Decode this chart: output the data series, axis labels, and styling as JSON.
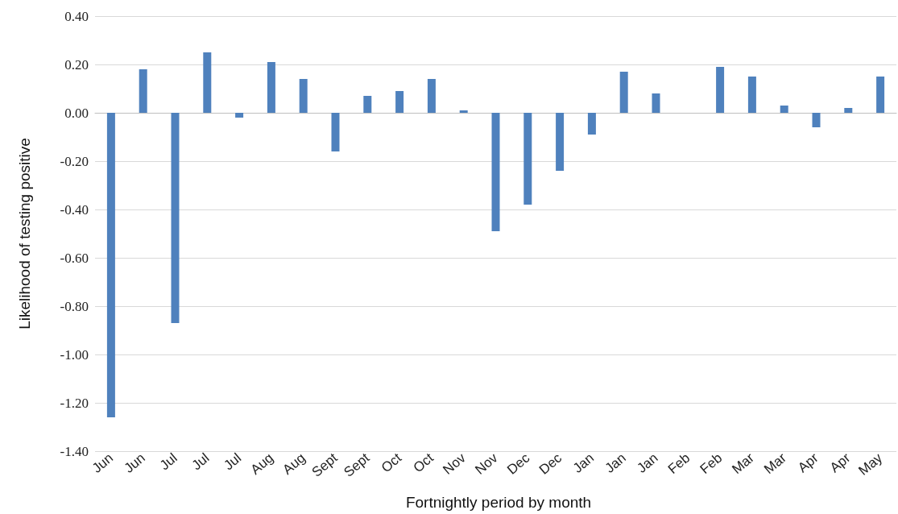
{
  "chart_data": {
    "type": "bar",
    "xlabel": "Fortnightly period by month",
    "ylabel": "Likelihood of testing positive",
    "categories": [
      "Jun",
      "Jun",
      "Jul",
      "Jul",
      "Jul",
      "Aug",
      "Aug",
      "Sept",
      "Sept",
      "Oct",
      "Oct",
      "Nov",
      "Nov",
      "Dec",
      "Dec",
      "Jan",
      "Jan",
      "Jan",
      "Feb",
      "Feb",
      "Mar",
      "Mar",
      "Apr",
      "Apr",
      "May"
    ],
    "values": [
      -1.26,
      0.18,
      -0.87,
      0.25,
      -0.02,
      0.21,
      0.14,
      -0.16,
      0.07,
      0.09,
      0.14,
      0.01,
      -0.49,
      -0.38,
      -0.24,
      -0.09,
      0.17,
      0.08,
      0,
      0.19,
      0.15,
      0.03,
      -0.06,
      0.02,
      0.15
    ],
    "color": "#4f81bd",
    "ylim": [
      -1.4,
      0.4
    ],
    "yticks": [
      {
        "value": -1.4,
        "label": "-1.40"
      },
      {
        "value": -1.2,
        "label": "-1.20"
      },
      {
        "value": -1.0,
        "label": "-1.00"
      },
      {
        "value": -0.8,
        "label": "-0.80"
      },
      {
        "value": -0.6,
        "label": "-0.60"
      },
      {
        "value": -0.4,
        "label": "-0.40"
      },
      {
        "value": -0.2,
        "label": "-0.20"
      },
      {
        "value": 0,
        "label": "0.00"
      },
      {
        "value": 0.2,
        "label": "0.20"
      },
      {
        "value": 0.4,
        "label": "0.40"
      }
    ],
    "grid": "y"
  }
}
